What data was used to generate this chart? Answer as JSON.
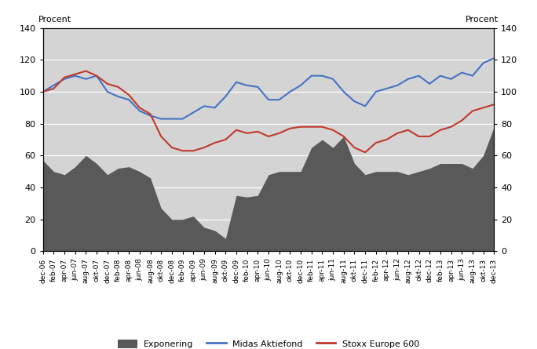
{
  "title_left": "Procent",
  "title_right": "Procent",
  "y_min": 0,
  "y_max": 140,
  "y_ticks": [
    0,
    20,
    40,
    60,
    80,
    100,
    120,
    140
  ],
  "outer_bg_color": "#ffffff",
  "plot_bg_color": "#d4d4d4",
  "line_midas_color": "#4472c4",
  "line_stoxx_color": "#c0392b",
  "fill_color": "#595959",
  "legend_labels": [
    "Exponering",
    "Midas Aktiefond",
    "Stoxx Europe 600"
  ],
  "x_labels": [
    "dec-06",
    "feb-07",
    "apr-07",
    "jun-07",
    "aug-07",
    "okt-07",
    "dec-07",
    "feb-08",
    "apr-08",
    "jun-08",
    "aug-08",
    "okt-08",
    "dec-08",
    "feb-09",
    "apr-09",
    "jun-09",
    "aug-09",
    "okt-09",
    "dec-09",
    "feb-10",
    "apr-10",
    "jun-10",
    "aug-10",
    "okt-10",
    "dec-10",
    "feb-11",
    "apr-11",
    "jun-11",
    "aug-11",
    "okt-11",
    "dec-11",
    "feb-12",
    "apr-12",
    "jun-12",
    "aug-12",
    "okt-12",
    "dec-12",
    "feb-13",
    "apr-13",
    "jun-13",
    "aug-13",
    "okt-13",
    "dec-13"
  ],
  "exponering": [
    57,
    50,
    48,
    53,
    60,
    55,
    48,
    52,
    53,
    50,
    46,
    27,
    20,
    20,
    22,
    15,
    13,
    8,
    35,
    34,
    35,
    48,
    50,
    50,
    50,
    65,
    70,
    65,
    72,
    55,
    48,
    50,
    50,
    50,
    48,
    50,
    52,
    55,
    55,
    55,
    52,
    60,
    78
  ],
  "midas": [
    100,
    104,
    108,
    110,
    108,
    110,
    100,
    97,
    95,
    88,
    85,
    83,
    83,
    83,
    87,
    91,
    90,
    97,
    106,
    104,
    103,
    95,
    95,
    100,
    104,
    110,
    110,
    108,
    100,
    94,
    91,
    100,
    102,
    104,
    108,
    110,
    105,
    110,
    108,
    112,
    110,
    118,
    121
  ],
  "stoxx": [
    100,
    102,
    109,
    111,
    113,
    110,
    105,
    103,
    98,
    90,
    86,
    72,
    65,
    63,
    63,
    65,
    68,
    70,
    76,
    74,
    75,
    72,
    74,
    77,
    78,
    78,
    78,
    76,
    72,
    65,
    62,
    68,
    70,
    74,
    76,
    72,
    72,
    76,
    78,
    82,
    88,
    90,
    92
  ]
}
